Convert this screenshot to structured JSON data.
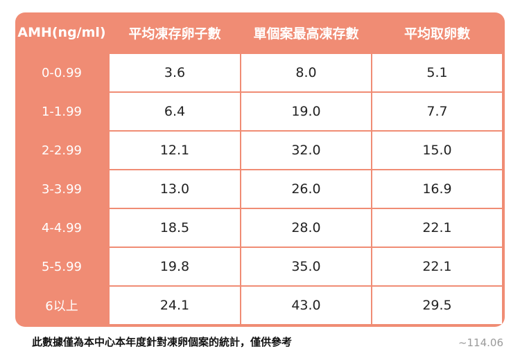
{
  "chart_data": {
    "type": "table",
    "columns": [
      "AMH(ng/ml)",
      "平均凍存卵子數",
      "單個案最高凍存數",
      "平均取卵數"
    ],
    "rows": [
      {
        "label": "0-0.99",
        "values": [
          "3.6",
          "8.0",
          "5.1"
        ]
      },
      {
        "label": "1-1.99",
        "values": [
          "6.4",
          "19.0",
          "7.7"
        ]
      },
      {
        "label": "2-2.99",
        "values": [
          "12.1",
          "32.0",
          "15.0"
        ]
      },
      {
        "label": "3-3.99",
        "values": [
          "13.0",
          "26.0",
          "16.9"
        ]
      },
      {
        "label": "4-4.99",
        "values": [
          "18.5",
          "28.0",
          "22.1"
        ]
      },
      {
        "label": "5-5.99",
        "values": [
          "19.8",
          "35.0",
          "22.1"
        ]
      },
      {
        "label": "6以上",
        "values": [
          "24.1",
          "43.0",
          "29.5"
        ]
      }
    ]
  },
  "footnote": "此數據僅為本中心本年度針對凍卵個案的統計，僅供參考",
  "date_note": "~114.06",
  "colors": {
    "accent": "#f08c74",
    "cell_bg": "#ffffff",
    "text": "#222222"
  }
}
